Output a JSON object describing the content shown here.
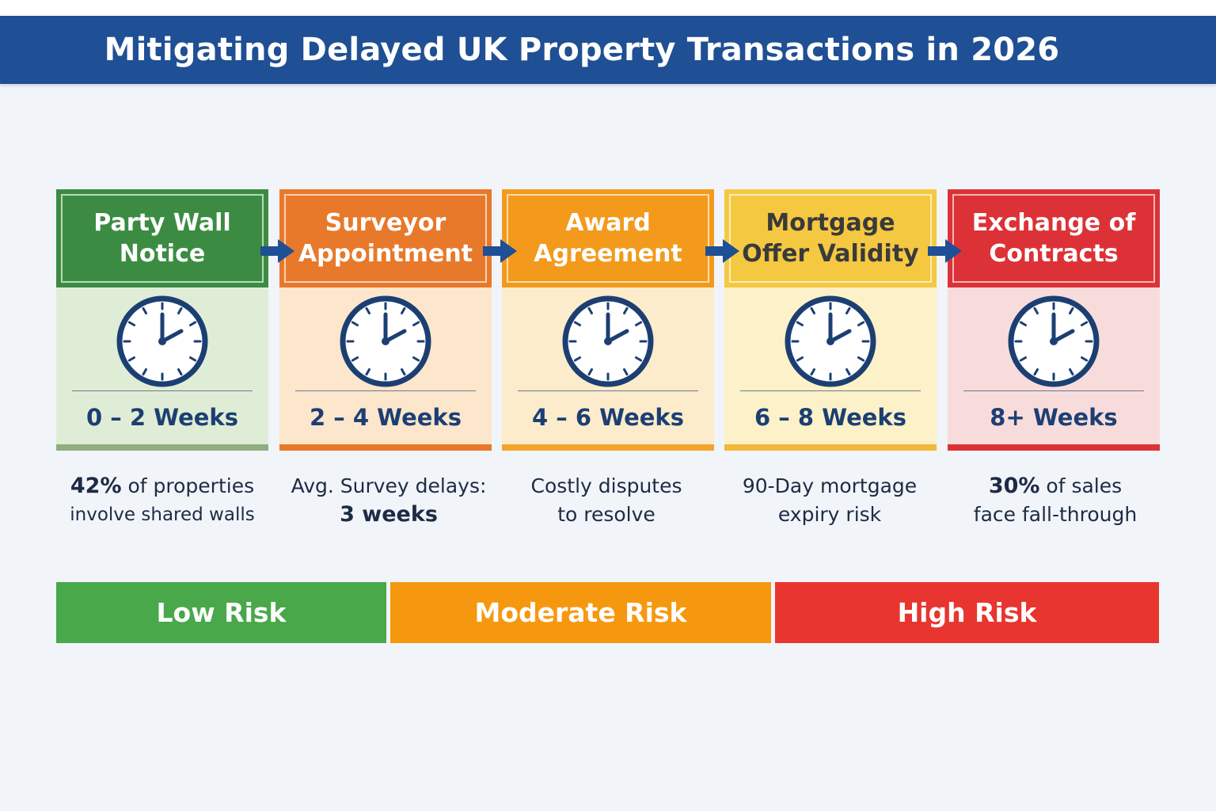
{
  "title": "Mitigating Delayed UK Property Transactions in 2026",
  "steps": [
    {
      "label": "Party Wall\nNotice",
      "weeks": "0 – 2 Weeks",
      "note_strong": "42%",
      "note_rest": " of properties",
      "note_line2": "involve shared walls",
      "head_color": "#3b8c42",
      "head_text_color": "#ffffff",
      "body_color": "#e0edd6",
      "foot_color": "#8fae80"
    },
    {
      "label": "Surveyor\nAppointment",
      "weeks": "2 – 4 Weeks",
      "note_line1": "Avg. Survey delays:",
      "note_strong2": "3 weeks",
      "head_color": "#e8792a",
      "head_text_color": "#ffffff",
      "body_color": "#fce6cc",
      "foot_color": "#e8792a"
    },
    {
      "label": "Award\nAgreement",
      "weeks": "4 – 6 Weeks",
      "note_line1": "Costly disputes",
      "note_line2": "to resolve",
      "head_color": "#f39a1c",
      "head_text_color": "#ffffff",
      "body_color": "#fdeccb",
      "foot_color": "#f3a42c"
    },
    {
      "label": "Mortgage\nOffer Validity",
      "weeks": "6 – 8 Weeks",
      "note_line1": "90-Day mortgage",
      "note_line2": "expiry risk",
      "head_color": "#f5c842",
      "head_text_color": "#3a3a3a",
      "body_color": "#fcf1c8",
      "foot_color": "#f2b83a"
    },
    {
      "label": "Exchange of\nContracts",
      "weeks": "8+ Weeks",
      "note_strong": "30%",
      "note_rest": " of sales",
      "note_line2": "face fall-through",
      "head_color": "#dc3237",
      "head_text_color": "#ffffff",
      "body_color": "#f8dcdc",
      "foot_color": "#dc3237"
    }
  ],
  "risk_bands": [
    {
      "label": "Low Risk",
      "color": "#48a84a"
    },
    {
      "label": "Moderate Risk",
      "color": "#f6980f"
    },
    {
      "label": "High Risk",
      "color": "#e8352f"
    }
  ],
  "colors": {
    "title_bar": "#1f4f94",
    "clock": "#1c3f73",
    "arrow": "#1f4f94"
  },
  "icons": {
    "clock": "clock-icon",
    "arrow": "arrow-right-icon"
  }
}
